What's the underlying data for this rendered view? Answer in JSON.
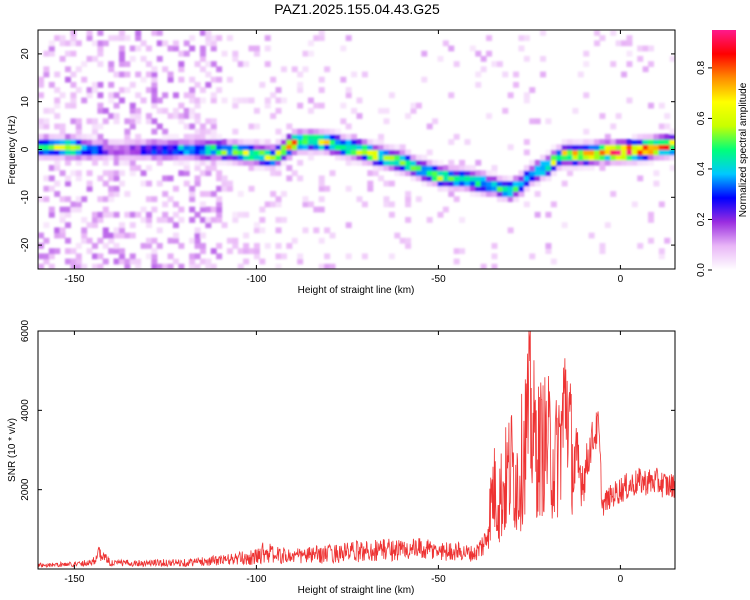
{
  "title": "PAZ1.2025.155.04.43.G25",
  "chart_data": [
    {
      "type": "heatmap",
      "name": "spectrogram",
      "xlabel": "Height of straight line (km)",
      "ylabel": "Frequency (Hz)",
      "xlim": [
        -160,
        15
      ],
      "ylim": [
        -25,
        25
      ],
      "xticks": [
        -150,
        -100,
        -50,
        0
      ],
      "yticks": [
        -20,
        -10,
        0,
        10,
        20
      ],
      "colorbar": {
        "label": "Normalized spectral amplitude",
        "range": [
          0,
          0.95
        ],
        "ticks": [
          "0.0",
          "0.2",
          "0.4",
          "0.6",
          "0.8"
        ],
        "tick_values": [
          0.0,
          0.2,
          0.4,
          0.6,
          0.8
        ],
        "colors": [
          "#ffffff",
          "#e9b6f7",
          "#9a2de0",
          "#0000ff",
          "#00c8ff",
          "#00ff7a",
          "#c8ff00",
          "#ffff00",
          "#ff8c00",
          "#ff0000",
          "#ff1a8c"
        ]
      },
      "ridge": {
        "x": [
          -157,
          -150,
          -145,
          -140,
          -130,
          -120,
          -110,
          -100,
          -95,
          -90,
          -85,
          -80,
          -75,
          -70,
          -65,
          -60,
          -55,
          -50,
          -45,
          -40,
          -35,
          -30,
          -27,
          -25,
          -22,
          -20,
          -18,
          -15,
          -10,
          -5,
          0,
          5,
          10,
          15
        ],
        "y": [
          0.5,
          0.5,
          0,
          0,
          0,
          0,
          0,
          -1,
          -1.5,
          1.5,
          2,
          1.5,
          0.5,
          -0.5,
          -1.5,
          -2.5,
          -4,
          -5.5,
          -6,
          -6.5,
          -7.5,
          -8.5,
          -7,
          -5.5,
          -4,
          -3.5,
          -2,
          -1,
          -1,
          -0.5,
          -0.5,
          0,
          0.5,
          1
        ],
        "intensity": [
          0.55,
          0.6,
          0.35,
          0.15,
          0.3,
          0.4,
          0.5,
          0.6,
          0.55,
          0.7,
          0.6,
          0.6,
          0.55,
          0.65,
          0.55,
          0.5,
          0.5,
          0.55,
          0.5,
          0.5,
          0.45,
          0.5,
          0.4,
          0.45,
          0.5,
          0.55,
          0.6,
          0.7,
          0.75,
          0.8,
          0.85,
          0.9,
          0.8,
          0.7
        ]
      }
    },
    {
      "type": "line",
      "name": "snr",
      "xlabel": "Height of straight line (km)",
      "ylabel": "SNR (10 * v/v)",
      "xlim": [
        -160,
        15
      ],
      "ylim": [
        0,
        6000
      ],
      "xticks": [
        -150,
        -100,
        -50,
        0
      ],
      "yticks": [
        2000,
        4000,
        6000
      ],
      "color": "#ee3333",
      "profile_x": [
        -160,
        -150,
        -145,
        -143,
        -140,
        -130,
        -120,
        -110,
        -100,
        -98,
        -95,
        -90,
        -85,
        -80,
        -75,
        -70,
        -65,
        -60,
        -55,
        -50,
        -45,
        -40,
        -37,
        -35,
        -33,
        -30,
        -28,
        -25,
        -23,
        -20,
        -18,
        -16,
        -15,
        -13,
        -10,
        -8,
        -6,
        -5,
        -3,
        0,
        5,
        10,
        13,
        15
      ],
      "profile_y": [
        100,
        120,
        180,
        400,
        150,
        150,
        160,
        220,
        300,
        450,
        350,
        320,
        350,
        380,
        420,
        450,
        500,
        480,
        500,
        450,
        450,
        380,
        700,
        2000,
        1800,
        2600,
        2200,
        4000,
        3000,
        3200,
        2600,
        3500,
        4500,
        2600,
        2300,
        3200,
        3600,
        1600,
        1800,
        2000,
        2200,
        2200,
        2100,
        2100
      ],
      "noise_amp": [
        60,
        60,
        100,
        200,
        80,
        90,
        100,
        130,
        200,
        300,
        220,
        200,
        220,
        240,
        260,
        280,
        300,
        280,
        280,
        250,
        240,
        200,
        400,
        1200,
        1300,
        1600,
        1500,
        2200,
        1800,
        1800,
        1600,
        1900,
        2000,
        1400,
        600,
        500,
        500,
        300,
        300,
        350,
        350,
        350,
        350,
        300
      ]
    }
  ]
}
